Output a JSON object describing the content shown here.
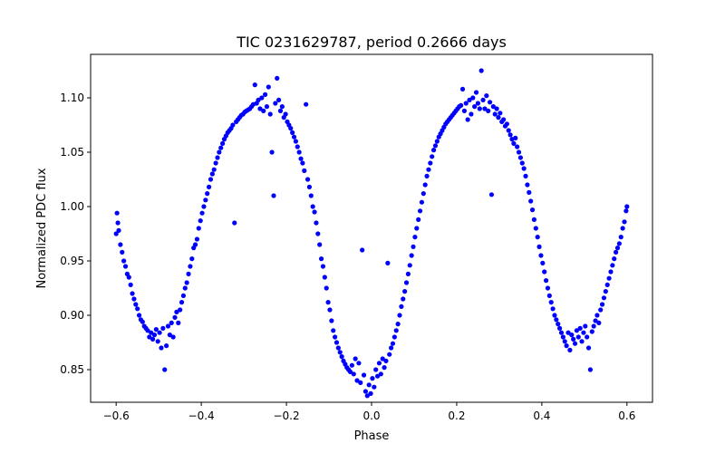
{
  "chart_data": {
    "type": "scatter",
    "title": "TIC 0231629787, period 0.2666 days",
    "xlabel": "Phase",
    "ylabel": "Normalized PDC flux",
    "xlim": [
      -0.66,
      0.66
    ],
    "ylim": [
      0.82,
      1.14
    ],
    "xticks": [
      -0.6,
      -0.4,
      -0.2,
      0.0,
      0.2,
      0.4,
      0.6
    ],
    "xtick_labels": [
      "−0.6",
      "−0.4",
      "−0.2",
      "0.0",
      "0.2",
      "0.4",
      "0.6"
    ],
    "yticks": [
      0.85,
      0.9,
      0.95,
      1.0,
      1.05,
      1.1
    ],
    "ytick_labels": [
      "0.85",
      "0.90",
      "0.95",
      "1.00",
      "1.05",
      "1.10"
    ],
    "grid": false,
    "marker_color": "#0000ff",
    "series": [
      {
        "points": [
          [
            -0.6,
            0.975
          ],
          [
            -0.598,
            0.994
          ],
          [
            -0.596,
            0.985
          ],
          [
            -0.594,
            0.978
          ],
          [
            -0.59,
            0.965
          ],
          [
            -0.586,
            0.958
          ],
          [
            -0.582,
            0.95
          ],
          [
            -0.578,
            0.945
          ],
          [
            -0.574,
            0.938
          ],
          [
            -0.57,
            0.935
          ],
          [
            -0.566,
            0.928
          ],
          [
            -0.562,
            0.92
          ],
          [
            -0.558,
            0.915
          ],
          [
            -0.554,
            0.91
          ],
          [
            -0.55,
            0.906
          ],
          [
            -0.546,
            0.9
          ],
          [
            -0.542,
            0.896
          ],
          [
            -0.538,
            0.894
          ],
          [
            -0.534,
            0.89
          ],
          [
            -0.53,
            0.888
          ],
          [
            -0.526,
            0.886
          ],
          [
            -0.522,
            0.88
          ],
          [
            -0.518,
            0.884
          ],
          [
            -0.514,
            0.878
          ],
          [
            -0.51,
            0.882
          ],
          [
            -0.506,
            0.887
          ],
          [
            -0.502,
            0.876
          ],
          [
            -0.498,
            0.884
          ],
          [
            -0.494,
            0.87
          ],
          [
            -0.49,
            0.888
          ],
          [
            -0.486,
            0.85
          ],
          [
            -0.482,
            0.872
          ],
          [
            -0.478,
            0.89
          ],
          [
            -0.474,
            0.882
          ],
          [
            -0.47,
            0.893
          ],
          [
            -0.466,
            0.88
          ],
          [
            -0.462,
            0.898
          ],
          [
            -0.458,
            0.903
          ],
          [
            -0.454,
            0.893
          ],
          [
            -0.45,
            0.905
          ],
          [
            -0.446,
            0.912
          ],
          [
            -0.442,
            0.918
          ],
          [
            -0.438,
            0.925
          ],
          [
            -0.434,
            0.93
          ],
          [
            -0.43,
            0.938
          ],
          [
            -0.426,
            0.945
          ],
          [
            -0.422,
            0.952
          ],
          [
            -0.418,
            0.962
          ],
          [
            -0.414,
            0.965
          ],
          [
            -0.41,
            0.97
          ],
          [
            -0.406,
            0.98
          ],
          [
            -0.402,
            0.987
          ],
          [
            -0.398,
            0.994
          ],
          [
            -0.394,
            1.0
          ],
          [
            -0.39,
            1.006
          ],
          [
            -0.386,
            1.012
          ],
          [
            -0.382,
            1.018
          ],
          [
            -0.378,
            1.025
          ],
          [
            -0.374,
            1.03
          ],
          [
            -0.37,
            1.034
          ],
          [
            -0.366,
            1.04
          ],
          [
            -0.362,
            1.045
          ],
          [
            -0.358,
            1.05
          ],
          [
            -0.354,
            1.054
          ],
          [
            -0.35,
            1.058
          ],
          [
            -0.346,
            1.062
          ],
          [
            -0.342,
            1.065
          ],
          [
            -0.338,
            1.068
          ],
          [
            -0.334,
            1.07
          ],
          [
            -0.33,
            1.072
          ],
          [
            -0.326,
            1.075
          ],
          [
            -0.322,
            0.985
          ],
          [
            -0.318,
            1.078
          ],
          [
            -0.314,
            1.08
          ],
          [
            -0.31,
            1.082
          ],
          [
            -0.306,
            1.084
          ],
          [
            -0.302,
            1.085
          ],
          [
            -0.298,
            1.087
          ],
          [
            -0.294,
            1.088
          ],
          [
            -0.29,
            1.089
          ],
          [
            -0.286,
            1.09
          ],
          [
            -0.282,
            1.092
          ],
          [
            -0.278,
            1.094
          ],
          [
            -0.274,
            1.112
          ],
          [
            -0.27,
            1.095
          ],
          [
            -0.266,
            1.098
          ],
          [
            -0.262,
            1.09
          ],
          [
            -0.258,
            1.1
          ],
          [
            -0.254,
            1.088
          ],
          [
            -0.25,
            1.103
          ],
          [
            -0.246,
            1.092
          ],
          [
            -0.242,
            1.11
          ],
          [
            -0.238,
            1.085
          ],
          [
            -0.234,
            1.05
          ],
          [
            -0.23,
            1.01
          ],
          [
            -0.226,
            1.095
          ],
          [
            -0.222,
            1.118
          ],
          [
            -0.218,
            1.098
          ],
          [
            -0.214,
            1.088
          ],
          [
            -0.21,
            1.092
          ],
          [
            -0.206,
            1.082
          ],
          [
            -0.202,
            1.085
          ],
          [
            -0.198,
            1.078
          ],
          [
            -0.194,
            1.075
          ],
          [
            -0.19,
            1.072
          ],
          [
            -0.186,
            1.068
          ],
          [
            -0.182,
            1.064
          ],
          [
            -0.178,
            1.06
          ],
          [
            -0.174,
            1.055
          ],
          [
            -0.17,
            1.05
          ],
          [
            -0.166,
            1.044
          ],
          [
            -0.162,
            1.04
          ],
          [
            -0.158,
            1.033
          ],
          [
            -0.154,
            1.094
          ],
          [
            -0.15,
            1.025
          ],
          [
            -0.146,
            1.018
          ],
          [
            -0.142,
            1.01
          ],
          [
            -0.138,
            1.0
          ],
          [
            -0.134,
            0.995
          ],
          [
            -0.13,
            0.985
          ],
          [
            -0.126,
            0.975
          ],
          [
            -0.122,
            0.965
          ],
          [
            -0.118,
            0.952
          ],
          [
            -0.114,
            0.945
          ],
          [
            -0.11,
            0.935
          ],
          [
            -0.106,
            0.925
          ],
          [
            -0.102,
            0.912
          ],
          [
            -0.098,
            0.905
          ],
          [
            -0.094,
            0.895
          ],
          [
            -0.09,
            0.886
          ],
          [
            -0.086,
            0.88
          ],
          [
            -0.082,
            0.875
          ],
          [
            -0.078,
            0.87
          ],
          [
            -0.074,
            0.866
          ],
          [
            -0.07,
            0.862
          ],
          [
            -0.066,
            0.858
          ],
          [
            -0.062,
            0.855
          ],
          [
            -0.058,
            0.852
          ],
          [
            -0.054,
            0.85
          ],
          [
            -0.05,
            0.848
          ],
          [
            -0.046,
            0.854
          ],
          [
            -0.042,
            0.846
          ],
          [
            -0.038,
            0.86
          ],
          [
            -0.034,
            0.84
          ],
          [
            -0.03,
            0.856
          ],
          [
            -0.026,
            0.838
          ],
          [
            -0.022,
            0.96
          ],
          [
            -0.018,
            0.845
          ],
          [
            -0.014,
            0.83
          ],
          [
            -0.01,
            0.826
          ],
          [
            -0.006,
            0.836
          ],
          [
            -0.002,
            0.828
          ],
          [
            0.002,
            0.842
          ],
          [
            0.006,
            0.834
          ],
          [
            0.01,
            0.85
          ],
          [
            0.014,
            0.844
          ],
          [
            0.018,
            0.856
          ],
          [
            0.022,
            0.846
          ],
          [
            0.026,
            0.86
          ],
          [
            0.03,
            0.852
          ],
          [
            0.034,
            0.858
          ],
          [
            0.038,
            0.948
          ],
          [
            0.042,
            0.864
          ],
          [
            0.046,
            0.87
          ],
          [
            0.05,
            0.874
          ],
          [
            0.054,
            0.88
          ],
          [
            0.058,
            0.886
          ],
          [
            0.062,
            0.892
          ],
          [
            0.066,
            0.9
          ],
          [
            0.07,
            0.908
          ],
          [
            0.074,
            0.915
          ],
          [
            0.078,
            0.922
          ],
          [
            0.082,
            0.93
          ],
          [
            0.086,
            0.938
          ],
          [
            0.09,
            0.946
          ],
          [
            0.094,
            0.955
          ],
          [
            0.098,
            0.963
          ],
          [
            0.102,
            0.972
          ],
          [
            0.106,
            0.98
          ],
          [
            0.11,
            0.988
          ],
          [
            0.114,
            0.996
          ],
          [
            0.118,
            1.004
          ],
          [
            0.122,
            1.012
          ],
          [
            0.126,
            1.02
          ],
          [
            0.13,
            1.028
          ],
          [
            0.134,
            1.034
          ],
          [
            0.138,
            1.04
          ],
          [
            0.142,
            1.046
          ],
          [
            0.146,
            1.052
          ],
          [
            0.15,
            1.056
          ],
          [
            0.154,
            1.06
          ],
          [
            0.158,
            1.064
          ],
          [
            0.162,
            1.067
          ],
          [
            0.166,
            1.07
          ],
          [
            0.17,
            1.073
          ],
          [
            0.174,
            1.076
          ],
          [
            0.178,
            1.078
          ],
          [
            0.182,
            1.08
          ],
          [
            0.186,
            1.082
          ],
          [
            0.19,
            1.084
          ],
          [
            0.194,
            1.086
          ],
          [
            0.198,
            1.088
          ],
          [
            0.202,
            1.09
          ],
          [
            0.206,
            1.092
          ],
          [
            0.21,
            1.093
          ],
          [
            0.214,
            1.108
          ],
          [
            0.218,
            1.088
          ],
          [
            0.222,
            1.095
          ],
          [
            0.226,
            1.08
          ],
          [
            0.23,
            1.098
          ],
          [
            0.234,
            1.085
          ],
          [
            0.238,
            1.1
          ],
          [
            0.242,
            1.092
          ],
          [
            0.246,
            1.105
          ],
          [
            0.25,
            1.095
          ],
          [
            0.254,
            1.09
          ],
          [
            0.258,
            1.125
          ],
          [
            0.262,
            1.098
          ],
          [
            0.266,
            1.09
          ],
          [
            0.27,
            1.102
          ],
          [
            0.274,
            1.088
          ],
          [
            0.278,
            1.096
          ],
          [
            0.282,
            1.011
          ],
          [
            0.286,
            1.092
          ],
          [
            0.29,
            1.085
          ],
          [
            0.294,
            1.09
          ],
          [
            0.298,
            1.082
          ],
          [
            0.302,
            1.086
          ],
          [
            0.306,
            1.078
          ],
          [
            0.31,
            1.08
          ],
          [
            0.314,
            1.074
          ],
          [
            0.318,
            1.076
          ],
          [
            0.322,
            1.07
          ],
          [
            0.326,
            1.066
          ],
          [
            0.33,
            1.062
          ],
          [
            0.334,
            1.058
          ],
          [
            0.338,
            1.063
          ],
          [
            0.342,
            1.055
          ],
          [
            0.346,
            1.05
          ],
          [
            0.35,
            1.045
          ],
          [
            0.354,
            1.04
          ],
          [
            0.358,
            1.035
          ],
          [
            0.362,
            1.028
          ],
          [
            0.366,
            1.02
          ],
          [
            0.37,
            1.013
          ],
          [
            0.374,
            1.005
          ],
          [
            0.378,
            0.997
          ],
          [
            0.382,
            0.988
          ],
          [
            0.386,
            0.98
          ],
          [
            0.39,
            0.972
          ],
          [
            0.394,
            0.963
          ],
          [
            0.398,
            0.955
          ],
          [
            0.402,
            0.948
          ],
          [
            0.406,
            0.94
          ],
          [
            0.41,
            0.932
          ],
          [
            0.414,
            0.925
          ],
          [
            0.418,
            0.918
          ],
          [
            0.422,
            0.912
          ],
          [
            0.426,
            0.906
          ],
          [
            0.43,
            0.9
          ],
          [
            0.434,
            0.896
          ],
          [
            0.438,
            0.892
          ],
          [
            0.442,
            0.888
          ],
          [
            0.446,
            0.884
          ],
          [
            0.45,
            0.88
          ],
          [
            0.454,
            0.876
          ],
          [
            0.458,
            0.872
          ],
          [
            0.462,
            0.884
          ],
          [
            0.466,
            0.868
          ],
          [
            0.47,
            0.882
          ],
          [
            0.474,
            0.878
          ],
          [
            0.478,
            0.874
          ],
          [
            0.482,
            0.886
          ],
          [
            0.486,
            0.88
          ],
          [
            0.49,
            0.888
          ],
          [
            0.494,
            0.876
          ],
          [
            0.498,
            0.884
          ],
          [
            0.502,
            0.89
          ],
          [
            0.506,
            0.88
          ],
          [
            0.51,
            0.87
          ],
          [
            0.514,
            0.85
          ],
          [
            0.518,
            0.885
          ],
          [
            0.522,
            0.89
          ],
          [
            0.526,
            0.895
          ],
          [
            0.53,
            0.9
          ],
          [
            0.534,
            0.893
          ],
          [
            0.538,
            0.905
          ],
          [
            0.542,
            0.91
          ],
          [
            0.546,
            0.916
          ],
          [
            0.55,
            0.922
          ],
          [
            0.554,
            0.928
          ],
          [
            0.558,
            0.934
          ],
          [
            0.562,
            0.94
          ],
          [
            0.566,
            0.946
          ],
          [
            0.57,
            0.952
          ],
          [
            0.574,
            0.958
          ],
          [
            0.578,
            0.962
          ],
          [
            0.582,
            0.966
          ],
          [
            0.586,
            0.972
          ],
          [
            0.59,
            0.98
          ],
          [
            0.594,
            0.986
          ],
          [
            0.598,
            0.996
          ],
          [
            0.6,
            1.0
          ]
        ]
      }
    ]
  }
}
